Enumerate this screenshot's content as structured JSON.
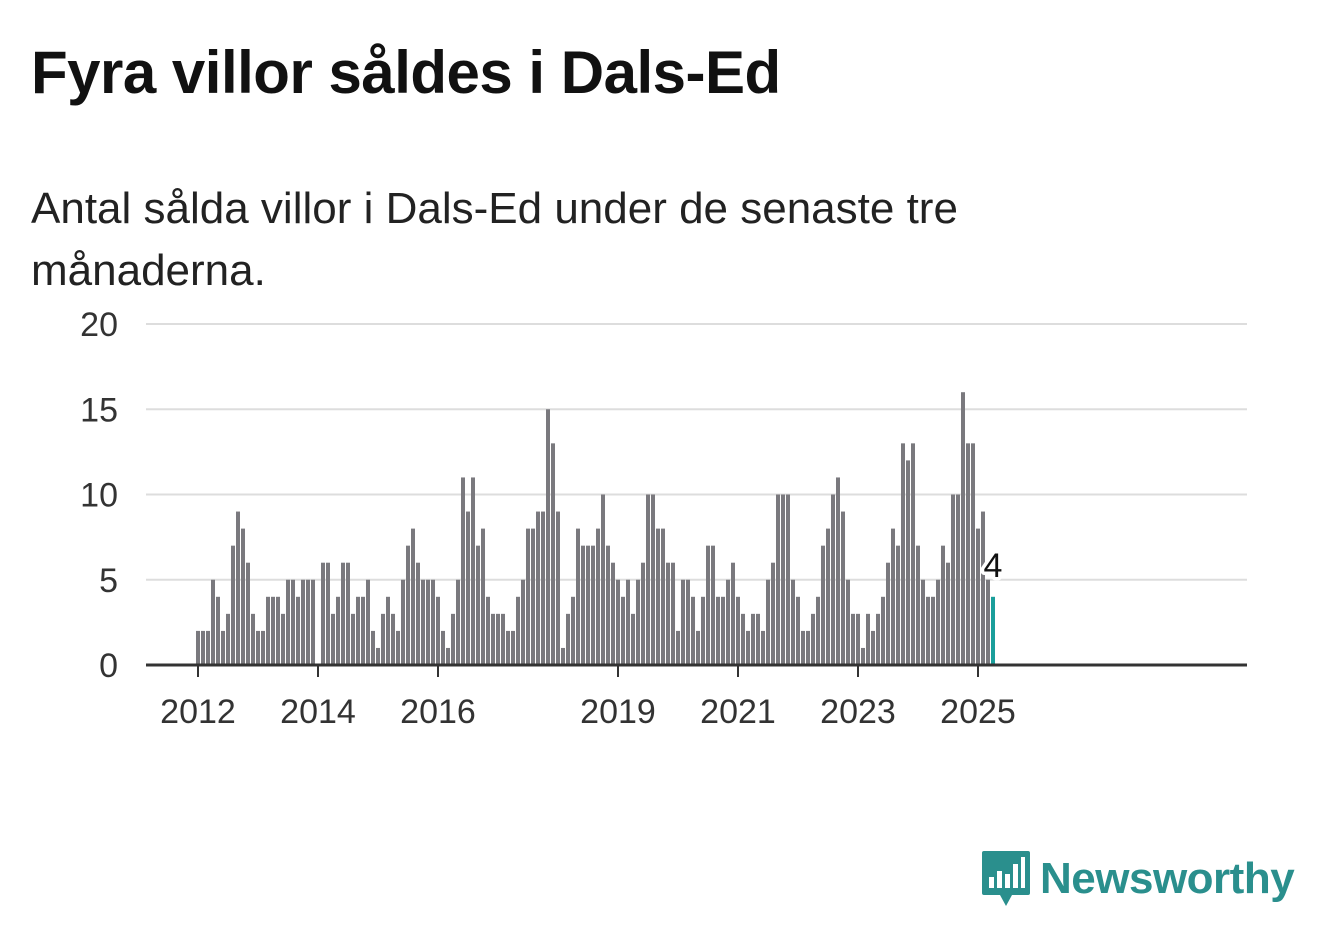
{
  "title": "Fyra villor såldes i Dals-Ed",
  "subtitle": "Antal sålda villor i Dals-Ed under de senaste tre månaderna.",
  "brand": {
    "name": "Newsworthy",
    "icon": "newsworthy-logo-icon",
    "color": "#2a8f8d"
  },
  "colors": {
    "bar": "#7a797e",
    "highlight": "#1a9e9b",
    "grid": "#dddddd",
    "axis": "#333333"
  },
  "chart_data": {
    "type": "bar",
    "x_start": "2012-01",
    "frequency": "monthly",
    "values": [
      2,
      2,
      2,
      5,
      4,
      2,
      3,
      7,
      9,
      8,
      6,
      3,
      2,
      2,
      4,
      4,
      4,
      3,
      5,
      5,
      4,
      5,
      5,
      5,
      0,
      6,
      6,
      3,
      4,
      6,
      6,
      3,
      4,
      4,
      5,
      2,
      1,
      3,
      4,
      3,
      2,
      5,
      7,
      8,
      6,
      5,
      5,
      5,
      4,
      2,
      1,
      3,
      5,
      11,
      9,
      11,
      7,
      8,
      4,
      3,
      3,
      3,
      2,
      2,
      4,
      5,
      8,
      8,
      9,
      9,
      15,
      13,
      9,
      1,
      3,
      4,
      8,
      7,
      7,
      7,
      8,
      10,
      7,
      6,
      5,
      4,
      5,
      3,
      5,
      6,
      10,
      10,
      8,
      8,
      6,
      6,
      2,
      5,
      5,
      4,
      2,
      4,
      7,
      7,
      4,
      4,
      5,
      6,
      4,
      3,
      2,
      3,
      3,
      2,
      5,
      6,
      10,
      10,
      10,
      5,
      4,
      2,
      2,
      3,
      4,
      7,
      8,
      10,
      11,
      9,
      5,
      3,
      3,
      1,
      3,
      2,
      3,
      4,
      6,
      8,
      7,
      13,
      12,
      13,
      7,
      5,
      4,
      4,
      5,
      7,
      6,
      10,
      10,
      16,
      13,
      13,
      8,
      9,
      5,
      4
    ],
    "highlight_last": true,
    "annotation": {
      "label": "4"
    },
    "xticks": [
      "2012",
      "2014",
      "2016",
      "2019",
      "2021",
      "2023",
      "2025"
    ],
    "yticks": [
      "0",
      "5",
      "10",
      "15",
      "20"
    ],
    "ylim": [
      0,
      20
    ],
    "grid": true,
    "xlabel": "",
    "ylabel": ""
  }
}
